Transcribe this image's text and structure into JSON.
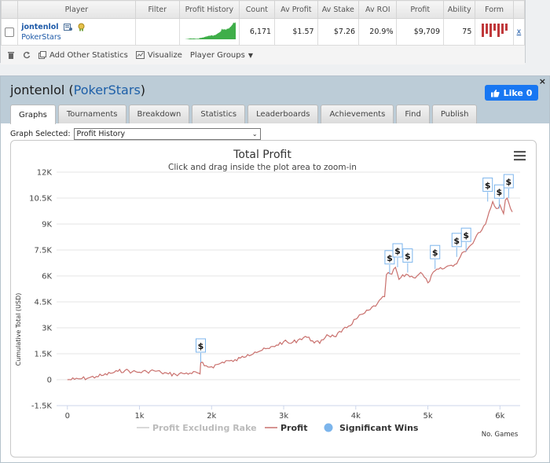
{
  "table": {
    "headers": [
      "Player",
      "Filter",
      "Profit History",
      "Count",
      "Av Profit",
      "Av Stake",
      "Av ROI",
      "Profit",
      "Ability",
      "Form"
    ],
    "row": {
      "player": "jontenlol",
      "network": "PokerStars",
      "count": "6,171",
      "av_profit": "$1.57",
      "av_stake": "$7.26",
      "av_roi": "20.9%",
      "profit": "$9,709",
      "ability": "75",
      "remove": "x"
    },
    "form_values": [
      3,
      2,
      3,
      1,
      3,
      2,
      1
    ]
  },
  "toolbar": {
    "add_stats": "Add Other Statistics",
    "visualize": "Visualize",
    "player_groups": "Player Groups"
  },
  "panel": {
    "player": "jontenlol",
    "network": "PokerStars",
    "like_label": "Like 0",
    "close": "×",
    "tabs": [
      "Graphs",
      "Tournaments",
      "Breakdown",
      "Statistics",
      "Leaderboards",
      "Achievements",
      "Find",
      "Publish"
    ],
    "graph_selected_label": "Graph Selected:",
    "graph_selected_value": "Profit History"
  },
  "chart_data": {
    "type": "line",
    "title": "Total Profit",
    "subtitle": "Click and drag inside the plot area to zoom-in",
    "ylabel": "Cumulative Total (USD)",
    "xlabel": "No. Games",
    "xlim": [
      -150,
      6280
    ],
    "ylim": [
      -1500,
      12000
    ],
    "x_ticks": [
      "0",
      "1k",
      "2k",
      "3k",
      "4k",
      "5k",
      "6k"
    ],
    "y_ticks": [
      "-1.5K",
      "0",
      "1.5K",
      "3K",
      "4.5K",
      "6K",
      "7.5K",
      "9K",
      "10.5K",
      "12K"
    ],
    "series": [
      {
        "name": "Profit",
        "color": "#c9706d",
        "x": [
          0,
          100,
          200,
          300,
          400,
          500,
          600,
          700,
          800,
          900,
          1000,
          1100,
          1200,
          1300,
          1400,
          1500,
          1600,
          1700,
          1800,
          1840,
          1850,
          1900,
          2000,
          2100,
          2200,
          2300,
          2400,
          2500,
          2600,
          2700,
          2800,
          2900,
          3000,
          3100,
          3200,
          3300,
          3400,
          3500,
          3600,
          3700,
          3800,
          3900,
          4000,
          4100,
          4200,
          4300,
          4400,
          4500,
          4550,
          4600,
          4700,
          4800,
          4900,
          5000,
          5100,
          5200,
          5300,
          5400,
          5450,
          5500,
          5600,
          5700,
          5800,
          5850,
          5900,
          5950,
          6000,
          6050,
          6100,
          6171
        ],
        "values": [
          0,
          20,
          60,
          110,
          180,
          260,
          370,
          480,
          540,
          460,
          430,
          470,
          520,
          420,
          330,
          300,
          360,
          380,
          400,
          330,
          1000,
          800,
          750,
          900,
          1100,
          1050,
          1250,
          1450,
          1600,
          1700,
          1800,
          2000,
          2200,
          2100,
          2300,
          2500,
          2250,
          2100,
          2600,
          2500,
          2750,
          3100,
          3500,
          3800,
          4050,
          4400,
          4800,
          6100,
          6500,
          5800,
          6100,
          5900,
          6200,
          5600,
          6300,
          6400,
          6600,
          6700,
          7100,
          7400,
          7800,
          8500,
          9000,
          9700,
          10300,
          9900,
          10100,
          9600,
          10500,
          9700
        ]
      },
      {
        "name": "Profit Excluding Rake",
        "color": "#cccccc",
        "hidden": true
      },
      {
        "name": "Significant Wins",
        "color": "#7cb5ec",
        "marker": "$",
        "x": [
          1850,
          4470,
          4580,
          4720,
          5100,
          5400,
          5530,
          5830,
          5990,
          6120
        ],
        "values": [
          1000,
          6100,
          6500,
          6200,
          6400,
          7100,
          7400,
          10300,
          9900,
          10500
        ]
      }
    ],
    "legend": [
      "Profit Excluding Rake",
      "Profit",
      "Significant Wins"
    ],
    "legend_position": "bottom-center"
  }
}
